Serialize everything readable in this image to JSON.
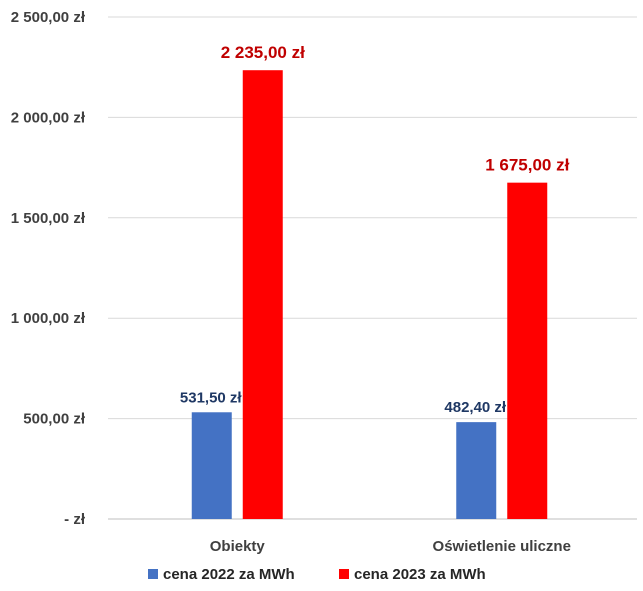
{
  "chart_data": {
    "type": "bar",
    "title": "",
    "xlabel": "",
    "ylabel": "",
    "categories": [
      "Obiekty",
      "Oświetlenie uliczne"
    ],
    "series": [
      {
        "name": "cena 2022 za MWh",
        "color": "#4472C4",
        "label_color": "#1F3864",
        "values": [
          531.5,
          482.4
        ],
        "labels": [
          "531,50 zł",
          "482,40 zł"
        ]
      },
      {
        "name": "cena 2023 za MWh",
        "color": "#FF0000",
        "label_color": "#C00000",
        "values": [
          2235.0,
          1675.0
        ],
        "labels": [
          "2 235,00 zł",
          "1 675,00 zł"
        ]
      }
    ],
    "ylim": [
      0,
      2500
    ],
    "yticks": [
      0,
      500,
      1000,
      1500,
      2000,
      2500
    ],
    "ytick_labels": [
      "-   zł",
      "500,00 zł",
      "1 000,00 zł",
      "1 500,00 zł",
      "2 000,00 zł",
      "2 500,00 zł"
    ],
    "grid": true,
    "legend_position": "bottom"
  }
}
